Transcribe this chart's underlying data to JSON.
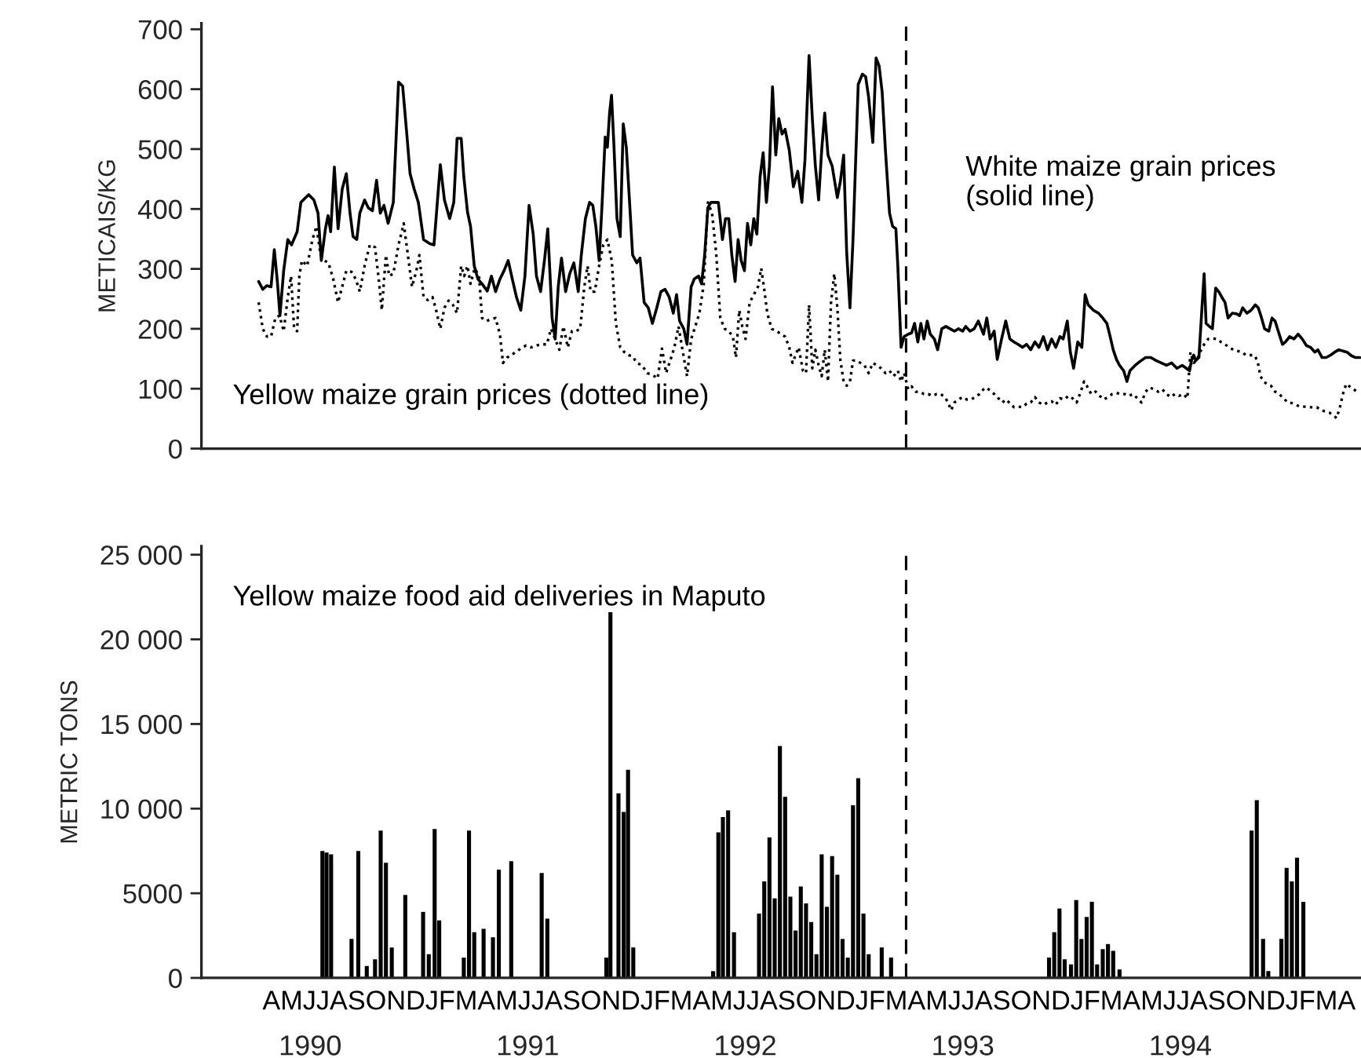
{
  "chart_data": [
    {
      "type": "line",
      "ylabel": "METICAIS/KG",
      "xlim": [
        1990.0,
        1995.33
      ],
      "ylim": [
        0,
        710
      ],
      "yticks": [
        0,
        100,
        200,
        300,
        400,
        500,
        600,
        700
      ],
      "tick_labels": "y",
      "ref_lines": [
        {
          "axis": "x",
          "value": 1993.239,
          "color": "#000000",
          "line_style": "dashed"
        }
      ],
      "series": [
        {
          "name": "White maize grain prices\n(solid line)",
          "color": "#000000",
          "line_style": "solid",
          "x": [
            1990.263,
            1990.282,
            1990.301,
            1990.32,
            1990.335,
            1990.349,
            1990.361,
            1990.378,
            1990.397,
            1990.414,
            1990.44,
            1990.457,
            1990.493,
            1990.517,
            1990.536,
            1990.551,
            1990.57,
            1990.582,
            1990.594,
            1990.611,
            1990.628,
            1990.647,
            1990.666,
            1990.683,
            1990.697,
            1990.714,
            1990.728,
            1990.75,
            1990.767,
            1990.786,
            1990.805,
            1990.822,
            1990.839,
            1990.858,
            1990.882,
            1990.906,
            1990.925,
            1990.944,
            1990.959,
            1990.978,
            1990.997,
            1991.021,
            1991.05,
            1991.069,
            1991.086,
            1991.098,
            1991.117,
            1991.141,
            1991.16,
            1991.175,
            1991.194,
            1991.206,
            1991.223,
            1991.237,
            1991.254,
            1991.271,
            1991.29,
            1991.314,
            1991.333,
            1991.352,
            1991.372,
            1991.391,
            1991.41,
            1991.429,
            1991.448,
            1991.468,
            1991.487,
            1991.506,
            1991.525,
            1991.54,
            1991.559,
            1991.578,
            1991.592,
            1991.612,
            1991.626,
            1991.64,
            1991.655,
            1991.674,
            1991.693,
            1991.712,
            1991.732,
            1991.746,
            1991.765,
            1991.784,
            1991.799,
            1991.813,
            1991.828,
            1991.842,
            1991.856,
            1991.866,
            1991.876,
            1991.885,
            1991.896,
            1991.91,
            1991.925,
            1991.939,
            1991.953,
            1991.968,
            1991.982,
            1992.001,
            1992.016,
            1992.035,
            1992.054,
            1992.073,
            1992.093,
            1992.112,
            1992.131,
            1992.15,
            1992.169,
            1992.184,
            1992.198,
            1992.217,
            1992.232,
            1992.251,
            1992.265,
            1992.285,
            1992.299,
            1992.313,
            1992.328,
            1992.342,
            1992.376,
            1992.395,
            1992.409,
            1992.424,
            1992.438,
            1992.453,
            1992.467,
            1992.481,
            1992.496,
            1992.51,
            1992.525,
            1992.539,
            1992.553,
            1992.568,
            1992.582,
            1992.597,
            1992.611,
            1992.625,
            1992.64,
            1992.654,
            1992.669,
            1992.683,
            1992.702,
            1992.721,
            1992.741,
            1992.76,
            1992.774,
            1992.793,
            1992.808,
            1992.822,
            1992.837,
            1992.851,
            1992.865,
            1992.88,
            1992.899,
            1992.923,
            1992.937,
            1992.952,
            1992.966,
            1992.981,
            1992.995,
            1993.019,
            1993.038,
            1993.053,
            1993.067,
            1993.086,
            1993.101,
            1993.115,
            1993.129,
            1993.144,
            1993.163,
            1993.177,
            1993.192,
            1993.201,
            1993.216,
            1993.23,
            1993.249,
            1993.264,
            1993.278,
            1993.293,
            1993.307,
            1993.321,
            1993.336,
            1993.35,
            1993.369,
            1993.384,
            1993.403,
            1993.422,
            1993.441,
            1993.461,
            1993.48,
            1993.499,
            1993.513,
            1993.533,
            1993.552,
            1993.571,
            1993.595,
            1993.61,
            1993.625,
            1993.644,
            1993.658,
            1993.678,
            1993.697,
            1993.716,
            1993.735,
            1993.754,
            1993.774,
            1993.793,
            1993.812,
            1993.831,
            1993.85,
            1993.87,
            1993.889,
            1993.908,
            1993.927,
            1993.946,
            1993.961,
            1993.98,
            1993.994,
            1994.009,
            1994.028,
            1994.047,
            1994.062,
            1994.076,
            1994.1,
            1994.124,
            1994.143,
            1994.162,
            1994.177,
            1994.191,
            1994.206,
            1994.22,
            1994.239,
            1994.254,
            1994.268,
            1994.292,
            1994.316,
            1994.34,
            1994.364,
            1994.388,
            1994.412,
            1994.436,
            1994.46,
            1994.484,
            1994.508,
            1994.527,
            1994.542,
            1994.551,
            1994.561,
            1994.57,
            1994.585,
            1994.599,
            1994.609,
            1994.618,
            1994.633,
            1994.647,
            1994.662,
            1994.676,
            1994.69,
            1994.705,
            1994.719,
            1994.738,
            1994.758,
            1994.772,
            1994.786,
            1994.806,
            1994.825,
            1994.844,
            1994.858,
            1994.873,
            1994.887,
            1994.906,
            1994.921,
            1994.935,
            1994.954,
            1994.969,
            1994.983,
            1995.002,
            1995.022,
            1995.041,
            1995.06,
            1995.079,
            1995.098,
            1995.118,
            1995.132,
            1995.151,
            1995.17,
            1995.19,
            1995.209,
            1995.228,
            1995.247,
            1995.266,
            1995.286,
            1995.305,
            1995.324
          ],
          "values": [
            279,
            266,
            272,
            270,
            332,
            279,
            222,
            297,
            349,
            340,
            362,
            411,
            424,
            415,
            393,
            314,
            367,
            389,
            362,
            470,
            367,
            433,
            459,
            393,
            354,
            349,
            393,
            415,
            402,
            397,
            448,
            393,
            406,
            376,
            411,
            612,
            605,
            525,
            459,
            433,
            411,
            349,
            342,
            340,
            419,
            474,
            415,
            384,
            411,
            518,
            518,
            454,
            395,
            371,
            305,
            283,
            275,
            263,
            288,
            262,
            283,
            297,
            314,
            283,
            253,
            231,
            288,
            406,
            358,
            288,
            262,
            318,
            367,
            218,
            183,
            270,
            318,
            262,
            292,
            310,
            262,
            323,
            384,
            411,
            406,
            371,
            314,
            411,
            520,
            503,
            560,
            590,
            507,
            384,
            354,
            542,
            503,
            411,
            323,
            310,
            318,
            244,
            235,
            209,
            235,
            262,
            266,
            253,
            226,
            257,
            213,
            200,
            174,
            270,
            283,
            288,
            275,
            323,
            402,
            411,
            411,
            349,
            384,
            384,
            323,
            279,
            349,
            314,
            297,
            376,
            340,
            384,
            358,
            454,
            494,
            411,
            472,
            604,
            490,
            551,
            525,
            533,
            498,
            437,
            463,
            411,
            481,
            656,
            551,
            472,
            415,
            498,
            560,
            490,
            472,
            419,
            446,
            490,
            327,
            235,
            349,
            608,
            625,
            621,
            586,
            511,
            652,
            639,
            595,
            498,
            393,
            371,
            367,
            305,
            169,
            187,
            191,
            193,
            209,
            178,
            209,
            183,
            213,
            191,
            183,
            165,
            200,
            204,
            200,
            196,
            200,
            196,
            204,
            196,
            200,
            213,
            191,
            218,
            183,
            196,
            149,
            183,
            213,
            183,
            178,
            174,
            169,
            174,
            165,
            178,
            169,
            187,
            165,
            183,
            169,
            187,
            183,
            213,
            161,
            134,
            178,
            169,
            257,
            240,
            231,
            226,
            218,
            209,
            187,
            165,
            149,
            139,
            130,
            112,
            130,
            139,
            146,
            152,
            152,
            147,
            143,
            139,
            143,
            134,
            139,
            134,
            130,
            147,
            156,
            147,
            152,
            235,
            292,
            209,
            204,
            200,
            268,
            262,
            253,
            244,
            218,
            226,
            225,
            222,
            235,
            226,
            231,
            240,
            235,
            218,
            200,
            196,
            218,
            213,
            191,
            174,
            178,
            187,
            183,
            191,
            183,
            172,
            169,
            161,
            165,
            152,
            152,
            156,
            161,
            165,
            163,
            161,
            155,
            152,
            152
          ]
        },
        {
          "name": "Yellow maize grain prices (dotted line)",
          "color": "#000000",
          "line_style": "dotted",
          "x": [
            1990.263,
            1990.282,
            1990.301,
            1990.32,
            1990.34,
            1990.359,
            1990.378,
            1990.397,
            1990.412,
            1990.426,
            1990.44,
            1990.45,
            1990.462,
            1990.486,
            1990.51,
            1990.529,
            1990.546,
            1990.565,
            1990.584,
            1990.606,
            1990.628,
            1990.647,
            1990.666,
            1990.69,
            1990.709,
            1990.728,
            1990.75,
            1990.774,
            1990.798,
            1990.815,
            1990.829,
            1990.848,
            1990.863,
            1990.882,
            1990.906,
            1990.93,
            1990.949,
            1990.968,
            1990.988,
            1991.002,
            1991.021,
            1991.04,
            1991.062,
            1991.079,
            1991.098,
            1991.117,
            1991.136,
            1991.156,
            1991.175,
            1991.194,
            1991.208,
            1991.223,
            1991.237,
            1991.256,
            1991.276,
            1991.29,
            1991.309,
            1991.333,
            1991.352,
            1991.372,
            1991.386,
            1991.405,
            1991.424,
            1991.444,
            1991.468,
            1991.492,
            1991.516,
            1991.54,
            1991.564,
            1991.588,
            1991.607,
            1991.626,
            1991.645,
            1991.664,
            1991.684,
            1991.703,
            1991.722,
            1991.741,
            1991.76,
            1991.775,
            1991.789,
            1991.808,
            1991.828,
            1991.847,
            1991.866,
            1991.886,
            1991.905,
            1991.925,
            1991.944,
            1991.963,
            1991.982,
            1992.001,
            1992.025,
            1992.049,
            1992.073,
            1992.097,
            1992.117,
            1992.136,
            1992.155,
            1992.174,
            1992.193,
            1992.213,
            1992.232,
            1992.251,
            1992.27,
            1992.289,
            1992.309,
            1992.328,
            1992.347,
            1992.366,
            1992.385,
            1992.405,
            1992.424,
            1992.443,
            1992.457,
            1992.472,
            1992.486,
            1992.501,
            1992.52,
            1992.539,
            1992.558,
            1992.573,
            1992.587,
            1992.601,
            1992.621,
            1992.645,
            1992.664,
            1992.683,
            1992.702,
            1992.717,
            1992.731,
            1992.745,
            1992.765,
            1992.779,
            1992.793,
            1992.808,
            1992.822,
            1992.837,
            1992.851,
            1992.865,
            1992.88,
            1992.894,
            1992.909,
            1992.923,
            1992.937,
            1992.952,
            1992.966,
            1992.981,
            1992.995,
            1993.009,
            1993.029,
            1993.048,
            1993.067,
            1993.086,
            1993.105,
            1993.125,
            1993.144,
            1993.163,
            1993.182,
            1993.201,
            1993.216,
            1993.23,
            1993.249,
            1993.264,
            1993.283,
            1993.302,
            1993.321,
            1993.341,
            1993.36,
            1993.379,
            1993.398,
            1993.417,
            1993.432,
            1993.446,
            1993.461,
            1993.48,
            1993.499,
            1993.518,
            1993.537,
            1993.557,
            1993.576,
            1993.595,
            1993.606,
            1993.625,
            1993.644,
            1993.663,
            1993.682,
            1993.697,
            1993.716,
            1993.735,
            1993.754,
            1993.774,
            1993.793,
            1993.812,
            1993.831,
            1993.85,
            1993.87,
            1993.889,
            1993.908,
            1993.927,
            1993.946,
            1993.966,
            1993.985,
            1994.004,
            1994.023,
            1994.042,
            1994.057,
            1994.071,
            1994.09,
            1994.11,
            1994.129,
            1994.148,
            1994.167,
            1994.186,
            1994.206,
            1994.225,
            1994.244,
            1994.263,
            1994.282,
            1994.302,
            1994.321,
            1994.34,
            1994.359,
            1994.378,
            1994.398,
            1994.417,
            1994.436,
            1994.455,
            1994.474,
            1994.494,
            1994.513,
            1994.532,
            1994.546,
            1994.561,
            1994.575,
            1994.59,
            1994.609,
            1994.628,
            1994.647,
            1994.666,
            1994.686,
            1994.705,
            1994.724,
            1994.743,
            1994.762,
            1994.782,
            1994.801,
            1994.82,
            1994.839,
            1994.854,
            1994.868,
            1994.882,
            1994.897,
            1994.916,
            1994.935,
            1994.954,
            1994.974,
            1994.993,
            1995.012,
            1995.031,
            1995.05,
            1995.07,
            1995.089,
            1995.108,
            1995.127,
            1995.146,
            1995.166,
            1995.185,
            1995.204,
            1995.218,
            1995.233,
            1995.247,
            1995.262,
            1995.276,
            1995.295,
            1995.314
          ],
          "values": [
            244,
            200,
            187,
            187,
            218,
            222,
            196,
            253,
            288,
            200,
            196,
            288,
            314,
            305,
            349,
            371,
            327,
            314,
            310,
            283,
            244,
            270,
            297,
            295,
            283,
            262,
            305,
            340,
            336,
            283,
            231,
            323,
            288,
            292,
            340,
            376,
            323,
            270,
            297,
            323,
            253,
            248,
            253,
            231,
            200,
            235,
            247,
            240,
            226,
            305,
            288,
            305,
            275,
            301,
            288,
            218,
            213,
            216,
            218,
            191,
            143,
            152,
            156,
            161,
            167,
            172,
            169,
            172,
            174,
            174,
            200,
            183,
            165,
            204,
            169,
            196,
            196,
            200,
            270,
            305,
            262,
            262,
            305,
            340,
            349,
            314,
            209,
            169,
            161,
            156,
            154,
            143,
            139,
            126,
            123,
            117,
            167,
            126,
            147,
            169,
            204,
            161,
            121,
            183,
            204,
            226,
            275,
            411,
            393,
            327,
            218,
            200,
            196,
            187,
            152,
            231,
            204,
            183,
            244,
            257,
            270,
            301,
            266,
            226,
            200,
            196,
            191,
            187,
            169,
            143,
            156,
            169,
            130,
            126,
            240,
            134,
            165,
            139,
            121,
            165,
            112,
            244,
            292,
            235,
            147,
            112,
            105,
            112,
            147,
            147,
            143,
            139,
            126,
            143,
            139,
            134,
            126,
            130,
            121,
            130,
            112,
            126,
            99,
            104,
            95,
            95,
            91,
            91,
            88,
            91,
            91,
            86,
            77,
            64,
            77,
            82,
            86,
            82,
            82,
            86,
            91,
            99,
            102,
            97,
            91,
            84,
            77,
            82,
            76,
            69,
            70,
            69,
            75,
            77,
            86,
            77,
            73,
            77,
            79,
            73,
            84,
            82,
            88,
            84,
            77,
            95,
            112,
            104,
            91,
            95,
            88,
            82,
            86,
            91,
            93,
            91,
            91,
            88,
            91,
            84,
            77,
            95,
            102,
            99,
            95,
            99,
            91,
            86,
            91,
            88,
            91,
            84,
            161,
            143,
            147,
            161,
            174,
            183,
            184,
            183,
            178,
            174,
            169,
            165,
            163,
            161,
            156,
            156,
            156,
            147,
            121,
            112,
            108,
            105,
            95,
            91,
            84,
            77,
            76,
            73,
            70,
            70,
            69,
            69,
            69,
            64,
            62,
            60,
            55,
            51,
            69,
            91,
            108,
            104,
            99,
            95
          ]
        }
      ]
    },
    {
      "type": "bar",
      "ylabel": "METRIC TONS",
      "xlim": [
        1990.0,
        1995.33
      ],
      "ylim": [
        0,
        25500
      ],
      "yticks": [
        0,
        5000,
        {
          "value": 10000,
          "label": "10 000"
        },
        {
          "value": 15000,
          "label": "15 000"
        },
        {
          "value": 20000,
          "label": "20 000"
        },
        {
          "value": 25000,
          "label": "25 000"
        }
      ],
      "xticks": [
        {
          "value": 1990.5,
          "label": "1990"
        },
        {
          "value": 1991.5,
          "label": "1991"
        },
        {
          "value": 1992.5,
          "label": "1992"
        },
        {
          "value": 1993.5,
          "label": "1993"
        },
        {
          "value": 1994.5,
          "label": "1994"
        }
      ],
      "annotations": [
        "AMJJASONDJFMAMJJASONDJFMAMJJASONDJFMAMJJASONDJFMAMJJASONDJFMA"
      ],
      "ref_lines": [
        {
          "axis": "x",
          "value": 1993.239,
          "color": "#000000",
          "line_style": "dashed"
        }
      ],
      "series": [
        {
          "name": "Yellow maize food aid deliveries in Maputo",
          "color": "#000000",
          "x": [
            1990.556,
            1990.575,
            1990.596,
            1990.69,
            1990.721,
            1990.76,
            1990.798,
            1990.824,
            1990.848,
            1990.875,
            1990.937,
            1991.019,
            1991.045,
            1991.072,
            1991.093,
            1991.206,
            1991.23,
            1991.254,
            1991.297,
            1991.34,
            1991.367,
            1991.424,
            1991.564,
            1991.59,
            1991.861,
            1991.88,
            1991.917,
            1991.941,
            1991.961,
            1991.985,
            1992.352,
            1992.376,
            1992.397,
            1992.421,
            1992.448,
            1992.563,
            1992.587,
            1992.611,
            1992.635,
            1992.659,
            1992.683,
            1992.707,
            1992.731,
            1992.755,
            1992.779,
            1992.803,
            1992.827,
            1992.851,
            1992.875,
            1992.899,
            1992.923,
            1992.947,
            1992.971,
            1992.995,
            1993.019,
            1993.043,
            1993.067,
            1993.127,
            1993.17,
            1993.896,
            1993.92,
            1993.944,
            1993.968,
            1993.997,
            1994.021,
            1994.045,
            1994.069,
            1994.093,
            1994.117,
            1994.143,
            1994.167,
            1994.191,
            1994.22,
            1994.827,
            1994.851,
            1994.88,
            1994.904,
            1994.964,
            1994.988,
            1995.012,
            1995.036,
            1995.065
          ],
          "values": [
            7500,
            7400,
            7300,
            2300,
            7500,
            700,
            1100,
            8700,
            6800,
            1800,
            4900,
            3900,
            1400,
            8800,
            3400,
            1200,
            8700,
            2700,
            2900,
            2400,
            6400,
            6900,
            6200,
            3500,
            1200,
            21600,
            10900,
            9800,
            12300,
            1800,
            400,
            8600,
            9500,
            9900,
            2700,
            3800,
            5700,
            8300,
            4700,
            13700,
            10700,
            4800,
            2800,
            5400,
            4400,
            3300,
            1400,
            7300,
            4200,
            7200,
            6100,
            2300,
            1200,
            10200,
            11800,
            3800,
            1400,
            1800,
            1200,
            1200,
            2700,
            4100,
            1100,
            800,
            4600,
            2300,
            3600,
            4500,
            800,
            1700,
            2000,
            1600,
            500,
            8700,
            10500,
            2300,
            400,
            2300,
            6500,
            5700,
            7100,
            4500
          ]
        }
      ]
    }
  ]
}
